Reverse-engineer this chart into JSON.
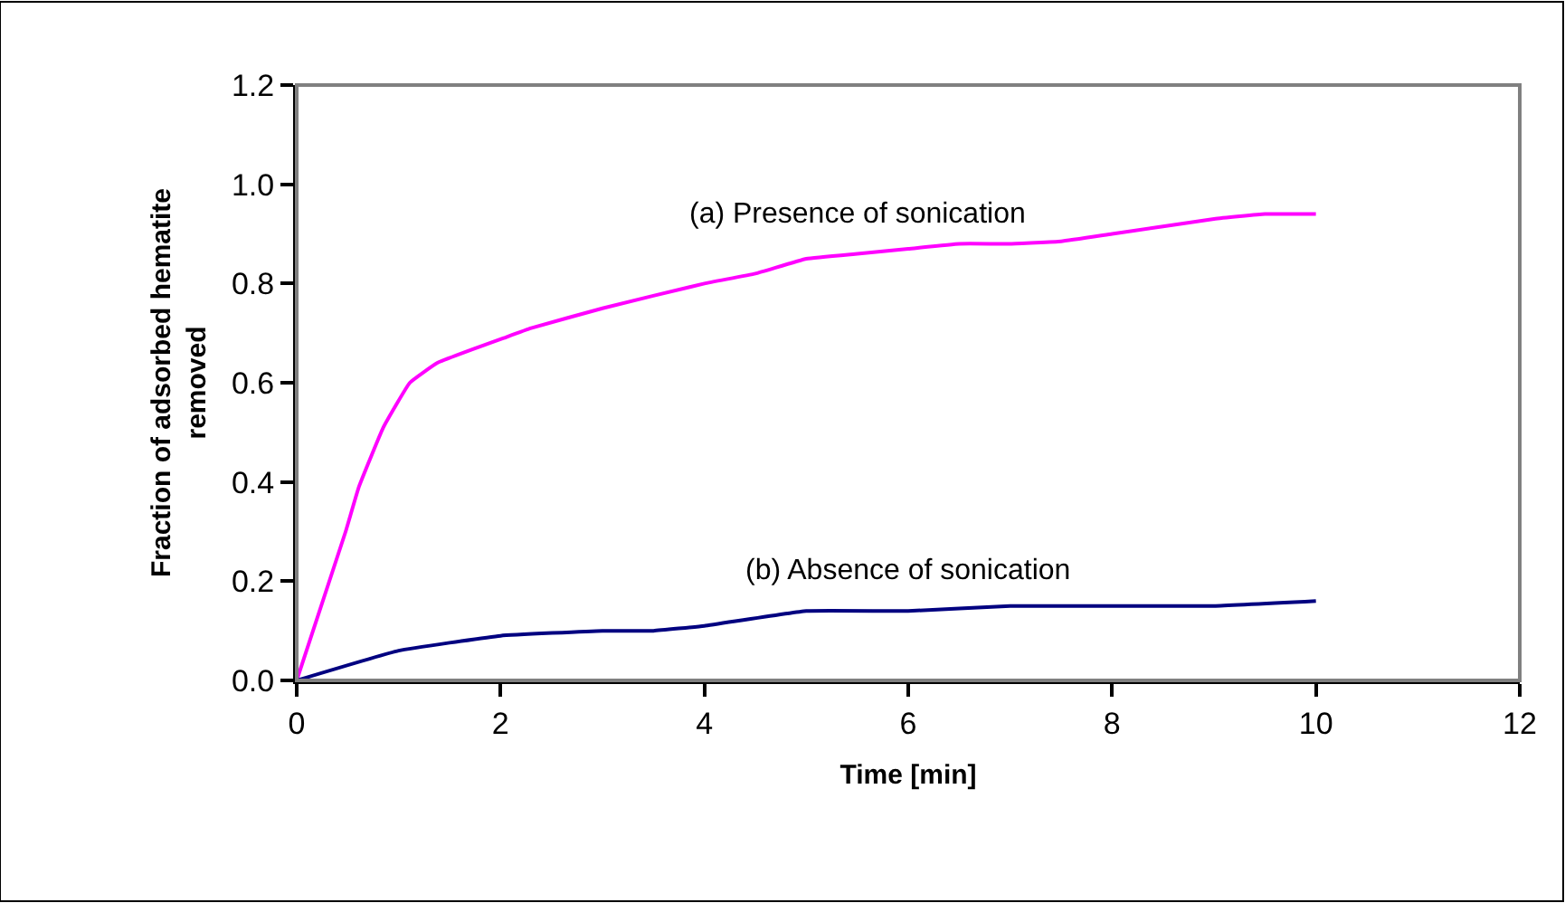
{
  "chart_data": {
    "type": "line",
    "xlabel": "Time [min]",
    "ylabel": "Fraction of adsorbed hematite removed",
    "xlim": [
      0,
      12
    ],
    "xticks": [
      0,
      2,
      4,
      6,
      8,
      10,
      12
    ],
    "ylim": [
      0,
      1.2
    ],
    "yticks": [
      {
        "value": 0,
        "label": "0.0"
      },
      {
        "value": 0.2,
        "label": "0.2"
      },
      {
        "value": 0.4,
        "label": "0.4"
      },
      {
        "value": 0.6,
        "label": "0.6"
      },
      {
        "value": 0.8,
        "label": "0.8"
      },
      {
        "value": 1.0,
        "label": "1.0"
      },
      {
        "value": 1.2,
        "label": "1.2"
      }
    ],
    "legend": false,
    "marker": "none",
    "line_style": "solid",
    "series": [
      {
        "name": "(a) Presence of sonication",
        "color": "#ff00ff",
        "x": [
          0,
          0.48,
          0.61,
          0.85,
          1.11,
          1.38,
          1.76,
          2.03,
          2.3,
          3.0,
          4.0,
          4.5,
          5.0,
          5.5,
          6.0,
          6.5,
          7.0,
          7.5,
          8.0,
          9.0,
          9.5,
          10.0
        ],
        "values": [
          0,
          0.3,
          0.39,
          0.51,
          0.6,
          0.64,
          0.67,
          0.69,
          0.71,
          0.75,
          0.8,
          0.82,
          0.85,
          0.86,
          0.87,
          0.88,
          0.88,
          0.885,
          0.9,
          0.93,
          0.94,
          0.94
        ]
      },
      {
        "name": "(b) Absence of sonication",
        "color": "#000080",
        "x": [
          0,
          1.0,
          2.0,
          3.0,
          3.5,
          4.0,
          5.0,
          6.0,
          7.0,
          8.0,
          9.0,
          10.0
        ],
        "values": [
          0,
          0.06,
          0.09,
          0.1,
          0.1,
          0.11,
          0.14,
          0.14,
          0.15,
          0.15,
          0.15,
          0.16
        ]
      }
    ]
  }
}
